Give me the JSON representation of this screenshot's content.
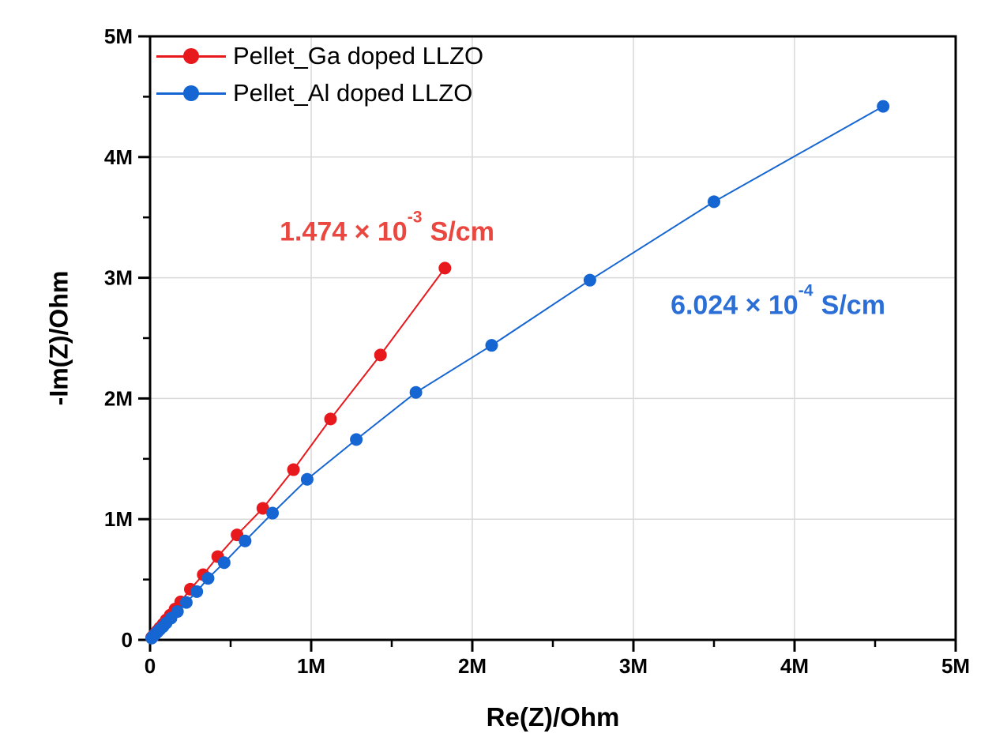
{
  "chart_data": {
    "type": "scatter",
    "title": "",
    "xlabel": "Re(Z)/Ohm",
    "ylabel": "-Im(Z)/Ohm",
    "xlim_ohm": [
      0,
      5000000
    ],
    "ylim_ohm": [
      0,
      5000000
    ],
    "x_ticks": {
      "values_mohm": [
        0,
        1,
        2,
        3,
        4,
        5
      ],
      "labels": [
        "0",
        "1M",
        "2M",
        "3M",
        "4M",
        "5M"
      ]
    },
    "y_ticks": {
      "values_mohm": [
        0,
        1,
        2,
        3,
        4,
        5
      ],
      "labels": [
        "0",
        "1M",
        "2M",
        "3M",
        "4M",
        "5M"
      ]
    },
    "minor_tick_step_mohm": 0.5,
    "grid": "major gridlines on, light gray",
    "legend_position": "top-left inside plot",
    "colors": {
      "grid": "#d9d9d9",
      "axis": "#000000",
      "background": "#ffffff"
    },
    "series": [
      {
        "name": "Pellet_Ga doped LLZO",
        "color": "#e8191d",
        "marker": "circle",
        "points_mohm": [
          [
            0.01,
            0.02
          ],
          [
            0.02,
            0.035
          ],
          [
            0.03,
            0.05
          ],
          [
            0.045,
            0.075
          ],
          [
            0.06,
            0.1
          ],
          [
            0.08,
            0.13
          ],
          [
            0.1,
            0.165
          ],
          [
            0.125,
            0.205
          ],
          [
            0.155,
            0.255
          ],
          [
            0.19,
            0.315
          ],
          [
            0.25,
            0.42
          ],
          [
            0.33,
            0.54
          ],
          [
            0.42,
            0.69
          ],
          [
            0.54,
            0.87
          ],
          [
            0.7,
            1.09
          ],
          [
            0.89,
            1.41
          ],
          [
            1.12,
            1.83
          ],
          [
            1.43,
            2.36
          ],
          [
            1.83,
            3.08
          ]
        ]
      },
      {
        "name": "Pellet_Al doped LLZO",
        "color": "#1565d2",
        "marker": "circle",
        "points_mohm": [
          [
            0.01,
            0.015
          ],
          [
            0.02,
            0.03
          ],
          [
            0.03,
            0.045
          ],
          [
            0.045,
            0.065
          ],
          [
            0.06,
            0.085
          ],
          [
            0.08,
            0.11
          ],
          [
            0.1,
            0.14
          ],
          [
            0.13,
            0.18
          ],
          [
            0.17,
            0.235
          ],
          [
            0.225,
            0.31
          ],
          [
            0.29,
            0.4
          ],
          [
            0.36,
            0.51
          ],
          [
            0.46,
            0.64
          ],
          [
            0.59,
            0.82
          ],
          [
            0.76,
            1.05
          ],
          [
            0.975,
            1.33
          ],
          [
            1.28,
            1.66
          ],
          [
            1.65,
            2.05
          ],
          [
            2.12,
            2.44
          ],
          [
            2.73,
            2.98
          ],
          [
            3.5,
            3.63
          ],
          [
            4.55,
            4.42
          ]
        ]
      }
    ],
    "annotations": [
      {
        "prefix": "1.474 × 10",
        "exponent": "-3",
        "unit": "S/cm",
        "color": "#e9473f",
        "anchor": "near red curve"
      },
      {
        "prefix": "6.024 × 10",
        "exponent": "-4",
        "unit": "S/cm",
        "color": "#2b6fd6",
        "anchor": "near blue curve"
      }
    ]
  }
}
